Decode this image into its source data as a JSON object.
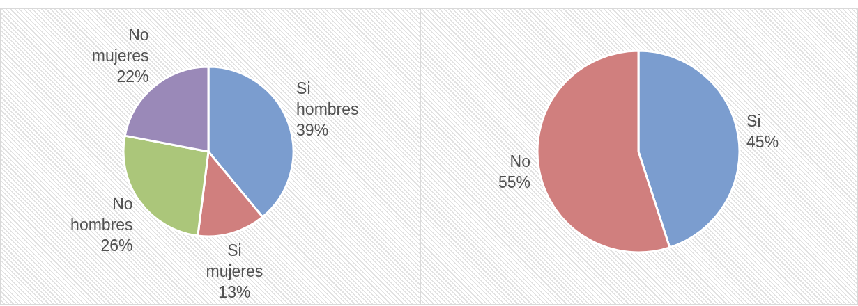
{
  "chart_data": [
    {
      "type": "pie",
      "categories": [
        "Si hombres",
        "Si mujeres",
        "No hombres",
        "No mujeres"
      ],
      "values": [
        39,
        13,
        26,
        22
      ],
      "value_labels": [
        "39%",
        "13%",
        "26%",
        "22%"
      ],
      "colors": [
        "#7b9dcf",
        "#d07f7e",
        "#abc67a",
        "#9a89b8"
      ]
    },
    {
      "type": "pie",
      "categories": [
        "Si",
        "No"
      ],
      "values": [
        45,
        55
      ],
      "value_labels": [
        "45%",
        "55%"
      ],
      "colors": [
        "#7b9dcf",
        "#d07f7e"
      ]
    }
  ]
}
